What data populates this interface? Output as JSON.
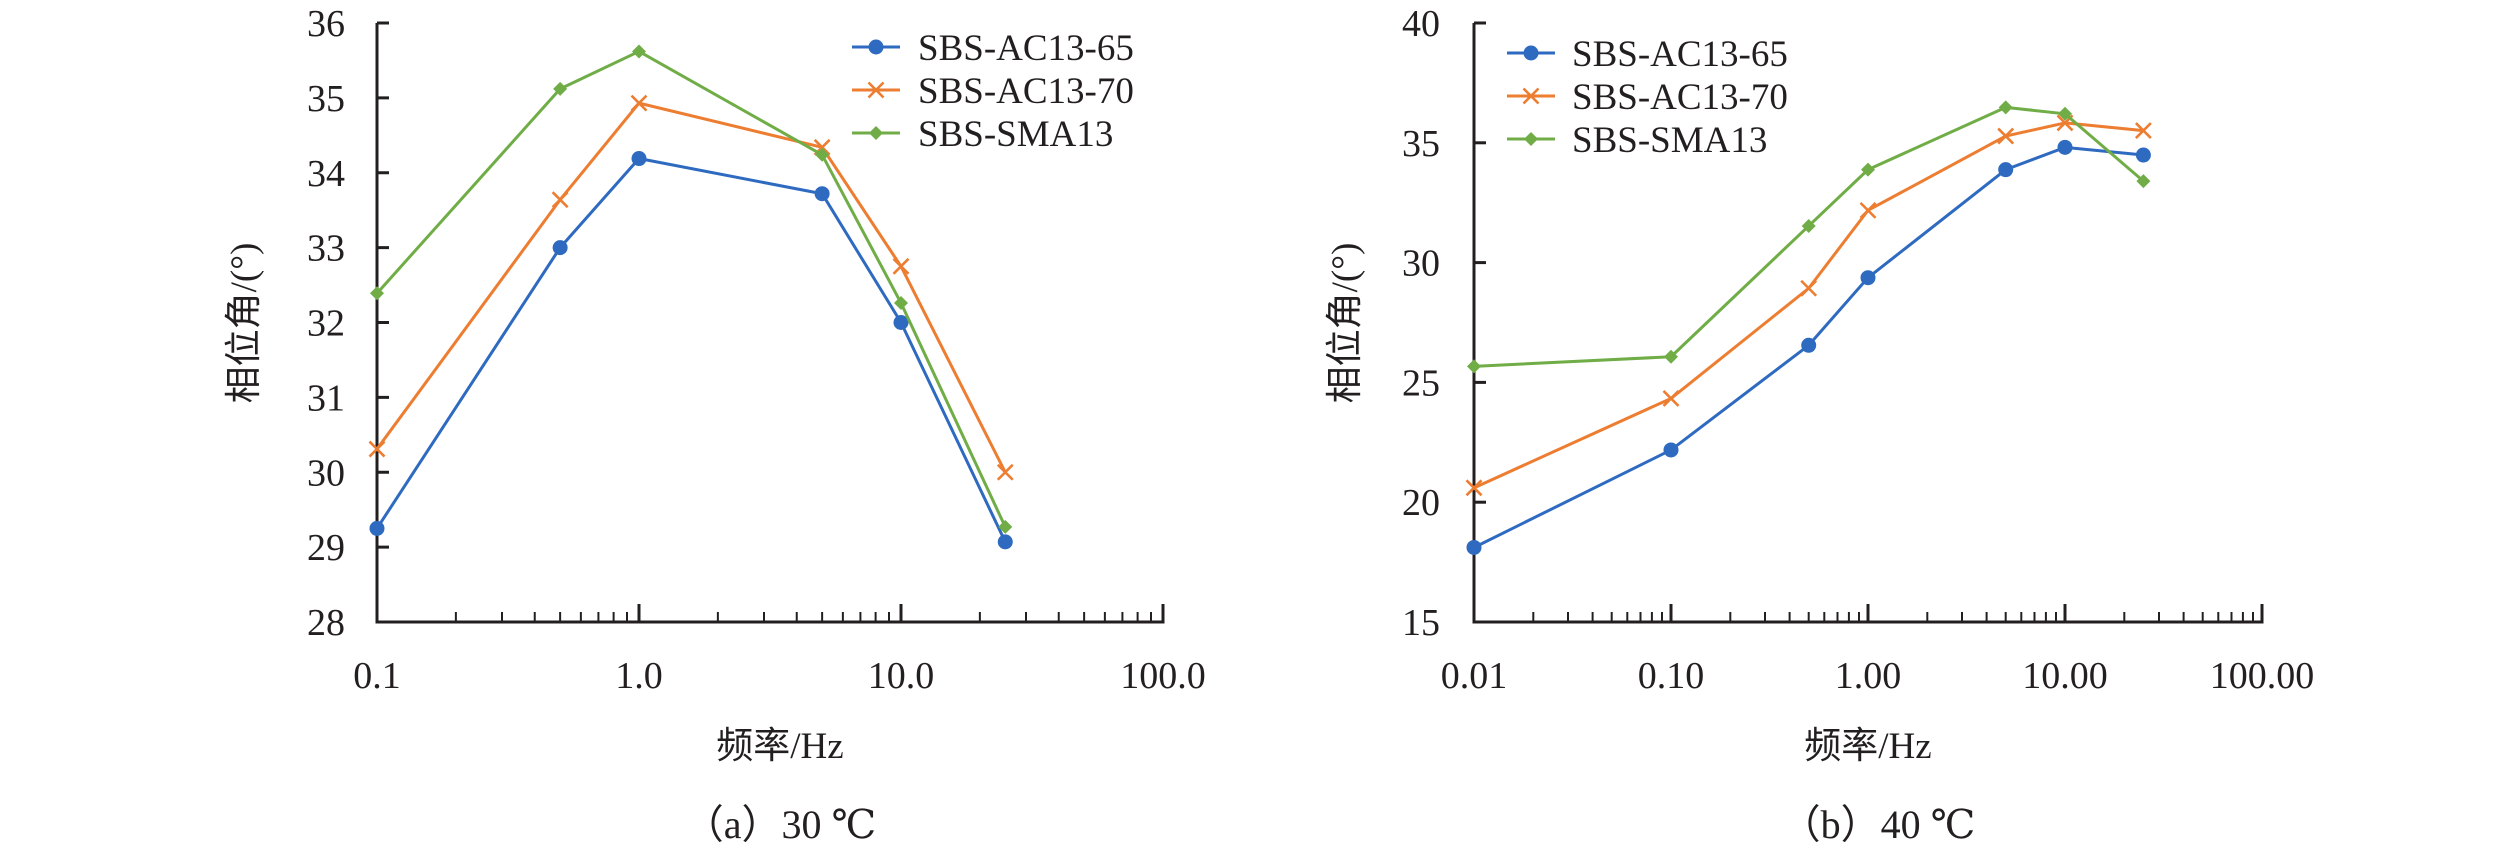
{
  "colors": {
    "SBS-AC13-65": "#2E6AC0",
    "SBS-AC13-70": "#ED7D31",
    "SBS-SMA13": "#70AD47",
    "axis": "#231f20"
  },
  "chart_data": [
    {
      "id": "a",
      "type": "line",
      "caption": "（a）30 ℃",
      "title": "",
      "xlabel": "频率/Hz",
      "ylabel": "相位角/(°)",
      "xscale": "log",
      "xlim": [
        0.1,
        100
      ],
      "ylim": [
        28,
        36
      ],
      "xticks": [
        0.1,
        1,
        10,
        100
      ],
      "xtick_labels": [
        "0.1",
        "1.0",
        "10.0",
        "100.0"
      ],
      "yticks": [
        28,
        29,
        30,
        31,
        32,
        33,
        34,
        35,
        36
      ],
      "ytick_labels": [
        "28",
        "29",
        "30",
        "31",
        "32",
        "33",
        "34",
        "35",
        "36"
      ],
      "grid": false,
      "legend_position": "top-right",
      "x": [
        0.1,
        0.5,
        1,
        5,
        10,
        25
      ],
      "series": [
        {
          "name": "SBS-AC13-65",
          "marker": "circle",
          "values": [
            29.25,
            33.0,
            34.19,
            33.72,
            32.0,
            29.07
          ]
        },
        {
          "name": "SBS-AC13-70",
          "marker": "x",
          "values": [
            30.31,
            33.64,
            34.93,
            34.34,
            32.75,
            30.0
          ]
        },
        {
          "name": "SBS-SMA13",
          "marker": "diamond",
          "values": [
            32.39,
            35.12,
            35.62,
            34.24,
            32.26,
            29.27
          ]
        }
      ]
    },
    {
      "id": "b",
      "type": "line",
      "caption": "（b）40 ℃",
      "title": "",
      "xlabel": "频率/Hz",
      "ylabel": "相位角/(°)",
      "xscale": "log",
      "xlim": [
        0.01,
        100
      ],
      "ylim": [
        15,
        40
      ],
      "xticks": [
        0.01,
        0.1,
        1,
        10,
        100
      ],
      "xtick_labels": [
        "0.01",
        "0.10",
        "1.00",
        "10.00",
        "100.00"
      ],
      "yticks": [
        15,
        20,
        25,
        30,
        35,
        40
      ],
      "ytick_labels": [
        "15",
        "20",
        "25",
        "30",
        "35",
        "40"
      ],
      "grid": false,
      "legend_position": "top-left",
      "x": [
        0.01,
        0.1,
        0.5,
        1,
        5,
        10,
        25
      ],
      "series": [
        {
          "name": "SBS-AC13-65",
          "marker": "circle",
          "values": [
            18.11,
            22.18,
            26.55,
            29.37,
            33.88,
            34.81,
            34.49
          ]
        },
        {
          "name": "SBS-AC13-70",
          "marker": "x",
          "values": [
            20.6,
            24.33,
            28.93,
            32.18,
            35.28,
            35.83,
            35.51
          ]
        },
        {
          "name": "SBS-SMA13",
          "marker": "diamond",
          "values": [
            25.67,
            26.07,
            31.53,
            33.88,
            36.48,
            36.21,
            33.4
          ]
        }
      ]
    }
  ]
}
